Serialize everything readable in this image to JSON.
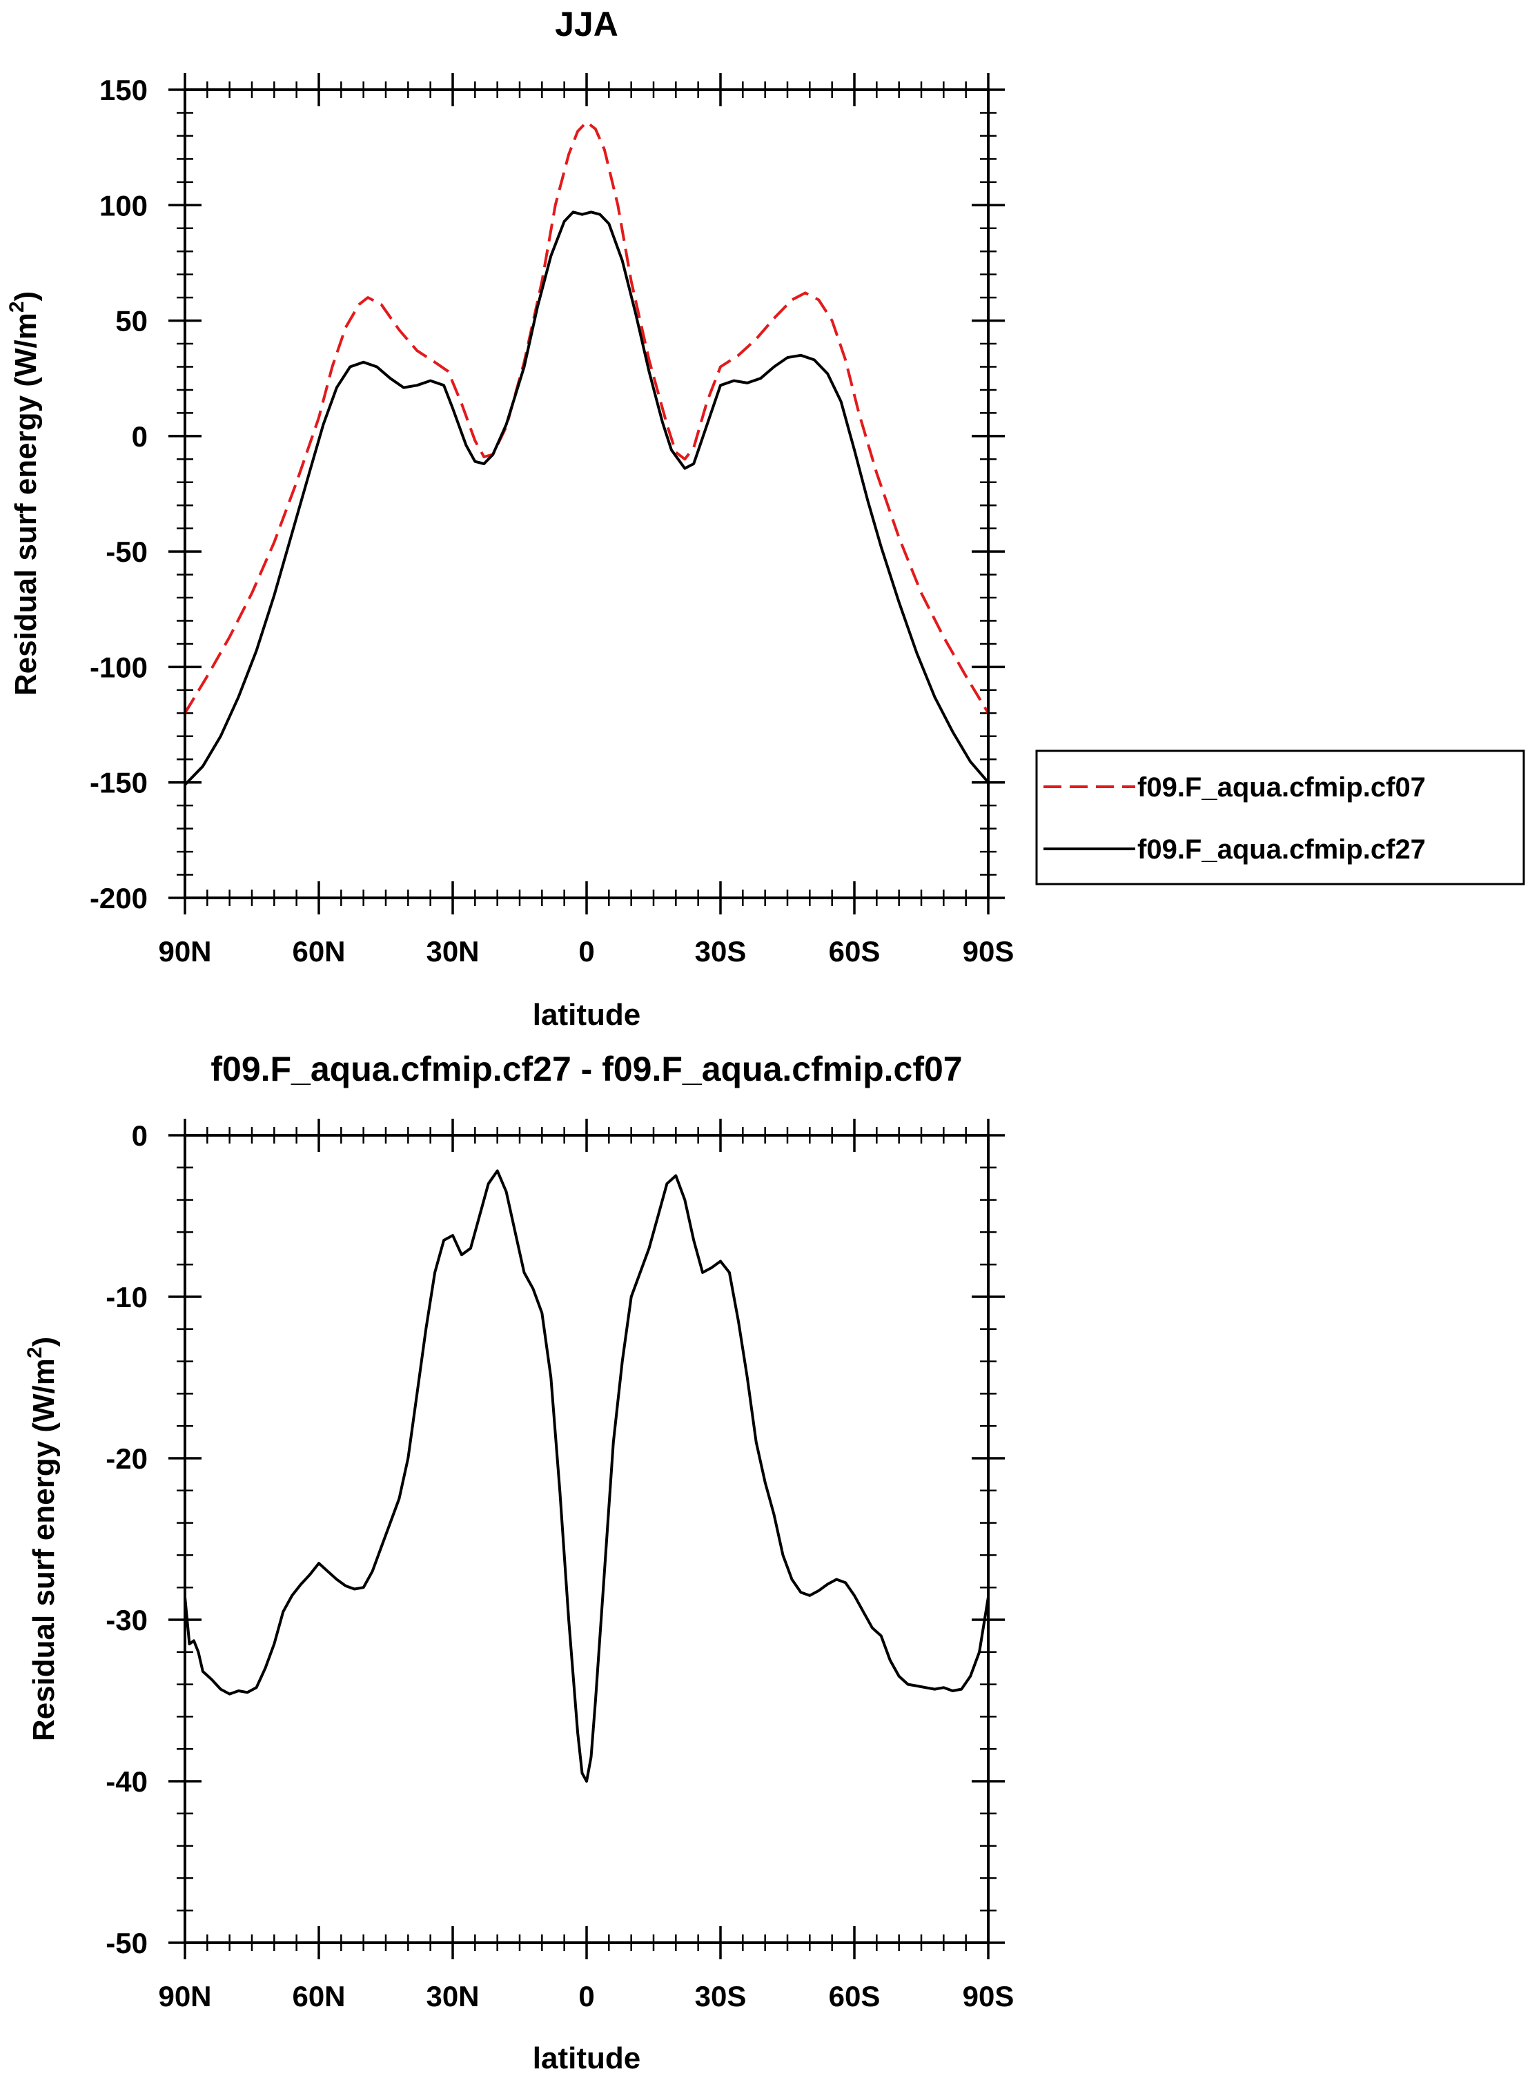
{
  "chart_data": [
    {
      "type": "line",
      "title": "JJA",
      "xlabel": "latitude",
      "ylabel_main": "Residual surf energy (W/m",
      "ylabel_sup": "2",
      "ylabel_close": ")",
      "xlim": [
        90,
        -90
      ],
      "ylim": [
        -200,
        150
      ],
      "xticks": [
        90,
        60,
        30,
        0,
        -30,
        -60,
        -90
      ],
      "xtick_labels": [
        "90N",
        "60N",
        "30N",
        "0",
        "30S",
        "60S",
        "90S"
      ],
      "yticks": [
        150,
        100,
        50,
        0,
        -50,
        -100,
        -150,
        -200
      ],
      "ytick_labels": [
        "150",
        "100",
        "50",
        "0",
        "-50",
        "-100",
        "-150",
        "-200"
      ],
      "grid": false,
      "legend_position": "right",
      "series": [
        {
          "name": "f09.F_aqua.cfmip.cf07",
          "color": "#e31a1c",
          "dash": "dashed",
          "points": [
            [
              90,
              -120
            ],
            [
              85,
              -104
            ],
            [
              80,
              -87
            ],
            [
              75,
              -68
            ],
            [
              70,
              -46
            ],
            [
              65,
              -20
            ],
            [
              60,
              8
            ],
            [
              57,
              30
            ],
            [
              54,
              47
            ],
            [
              51,
              57
            ],
            [
              49,
              60
            ],
            [
              46,
              57
            ],
            [
              42,
              46
            ],
            [
              38,
              37
            ],
            [
              34,
              32
            ],
            [
              31,
              28
            ],
            [
              28,
              14
            ],
            [
              25,
              -2
            ],
            [
              23,
              -9
            ],
            [
              21,
              -8
            ],
            [
              18,
              4
            ],
            [
              14,
              32
            ],
            [
              10,
              67
            ],
            [
              7,
              100
            ],
            [
              4,
              122
            ],
            [
              2,
              132
            ],
            [
              0,
              136
            ],
            [
              -2,
              133
            ],
            [
              -4,
              124
            ],
            [
              -7,
              100
            ],
            [
              -10,
              67
            ],
            [
              -14,
              33
            ],
            [
              -18,
              5
            ],
            [
              -20,
              -7
            ],
            [
              -22,
              -10
            ],
            [
              -24,
              -5
            ],
            [
              -27,
              15
            ],
            [
              -30,
              30
            ],
            [
              -34,
              35
            ],
            [
              -38,
              42
            ],
            [
              -42,
              51
            ],
            [
              -46,
              59
            ],
            [
              -49,
              62
            ],
            [
              -52,
              59
            ],
            [
              -55,
              50
            ],
            [
              -58,
              33
            ],
            [
              -61,
              10
            ],
            [
              -65,
              -16
            ],
            [
              -70,
              -44
            ],
            [
              -75,
              -68
            ],
            [
              -80,
              -87
            ],
            [
              -85,
              -104
            ],
            [
              -90,
              -120
            ]
          ]
        },
        {
          "name": "f09.F_aqua.cfmip.cf27",
          "color": "#000000",
          "dash": "solid",
          "points": [
            [
              90,
              -151
            ],
            [
              86,
              -143
            ],
            [
              82,
              -130
            ],
            [
              78,
              -113
            ],
            [
              74,
              -93
            ],
            [
              70,
              -69
            ],
            [
              66,
              -42
            ],
            [
              62,
              -15
            ],
            [
              59,
              5
            ],
            [
              56,
              21
            ],
            [
              53,
              30
            ],
            [
              50,
              32
            ],
            [
              47,
              30
            ],
            [
              44,
              25
            ],
            [
              41,
              21
            ],
            [
              38,
              22
            ],
            [
              35,
              24
            ],
            [
              32,
              22
            ],
            [
              30,
              12
            ],
            [
              27,
              -4
            ],
            [
              25,
              -11
            ],
            [
              23,
              -12
            ],
            [
              21,
              -8
            ],
            [
              18,
              5
            ],
            [
              14,
              30
            ],
            [
              11,
              56
            ],
            [
              8,
              78
            ],
            [
              5,
              93
            ],
            [
              3,
              97
            ],
            [
              1,
              96
            ],
            [
              -1,
              97
            ],
            [
              -3,
              96
            ],
            [
              -5,
              92
            ],
            [
              -8,
              76
            ],
            [
              -11,
              53
            ],
            [
              -14,
              28
            ],
            [
              -17,
              6
            ],
            [
              -19,
              -6
            ],
            [
              -22,
              -14
            ],
            [
              -24,
              -12
            ],
            [
              -27,
              5
            ],
            [
              -30,
              22
            ],
            [
              -33,
              24
            ],
            [
              -36,
              23
            ],
            [
              -39,
              25
            ],
            [
              -42,
              30
            ],
            [
              -45,
              34
            ],
            [
              -48,
              35
            ],
            [
              -51,
              33
            ],
            [
              -54,
              27
            ],
            [
              -57,
              15
            ],
            [
              -60,
              -6
            ],
            [
              -63,
              -28
            ],
            [
              -66,
              -48
            ],
            [
              -70,
              -72
            ],
            [
              -74,
              -94
            ],
            [
              -78,
              -113
            ],
            [
              -82,
              -128
            ],
            [
              -86,
              -141
            ],
            [
              -90,
              -150
            ]
          ]
        }
      ]
    },
    {
      "type": "line",
      "title": "f09.F_aqua.cfmip.cf27 - f09.F_aqua.cfmip.cf07",
      "xlabel": "latitude",
      "ylabel_main": "Residual surf energy (W/m",
      "ylabel_sup": "2",
      "ylabel_close": ")",
      "xlim": [
        90,
        -90
      ],
      "ylim": [
        -50,
        0
      ],
      "xticks": [
        90,
        60,
        30,
        0,
        -30,
        -60,
        -90
      ],
      "xtick_labels": [
        "90N",
        "60N",
        "30N",
        "0",
        "30S",
        "60S",
        "90S"
      ],
      "yticks": [
        0,
        -10,
        -20,
        -30,
        -40,
        -50
      ],
      "ytick_labels": [
        "0",
        "-10",
        "-20",
        "-30",
        "-40",
        "-50"
      ],
      "grid": false,
      "series": [
        {
          "name": "",
          "color": "#000000",
          "dash": "solid",
          "points": [
            [
              90,
              -28.6
            ],
            [
              89,
              -31.5
            ],
            [
              88,
              -31.3
            ],
            [
              87,
              -32
            ],
            [
              86,
              -33.2
            ],
            [
              84,
              -33.7
            ],
            [
              82,
              -34.3
            ],
            [
              80,
              -34.6
            ],
            [
              78,
              -34.4
            ],
            [
              76,
              -34.5
            ],
            [
              74,
              -34.2
            ],
            [
              72,
              -33
            ],
            [
              70,
              -31.5
            ],
            [
              68,
              -29.5
            ],
            [
              66,
              -28.5
            ],
            [
              64,
              -27.8
            ],
            [
              62,
              -27.2
            ],
            [
              60,
              -26.5
            ],
            [
              58,
              -27
            ],
            [
              56,
              -27.5
            ],
            [
              54,
              -27.9
            ],
            [
              52,
              -28.1
            ],
            [
              50,
              -28
            ],
            [
              48,
              -27
            ],
            [
              46,
              -25.5
            ],
            [
              44,
              -24
            ],
            [
              42,
              -22.5
            ],
            [
              40,
              -20
            ],
            [
              38,
              -16
            ],
            [
              36,
              -12
            ],
            [
              34,
              -8.5
            ],
            [
              32,
              -6.5
            ],
            [
              30,
              -6.2
            ],
            [
              28,
              -7.4
            ],
            [
              26,
              -7
            ],
            [
              24,
              -5
            ],
            [
              22,
              -3
            ],
            [
              20,
              -2.2
            ],
            [
              18,
              -3.5
            ],
            [
              16,
              -6
            ],
            [
              14,
              -8.5
            ],
            [
              12,
              -9.5
            ],
            [
              10,
              -11
            ],
            [
              8,
              -15
            ],
            [
              6,
              -22
            ],
            [
              4,
              -30
            ],
            [
              2,
              -37
            ],
            [
              1,
              -39.5
            ],
            [
              0,
              -40
            ],
            [
              -1,
              -38.5
            ],
            [
              -2,
              -35
            ],
            [
              -4,
              -27
            ],
            [
              -6,
              -19
            ],
            [
              -8,
              -14
            ],
            [
              -10,
              -10
            ],
            [
              -12,
              -8.5
            ],
            [
              -14,
              -7
            ],
            [
              -16,
              -5
            ],
            [
              -18,
              -3
            ],
            [
              -20,
              -2.5
            ],
            [
              -22,
              -4
            ],
            [
              -24,
              -6.5
            ],
            [
              -26,
              -8.5
            ],
            [
              -28,
              -8.2
            ],
            [
              -30,
              -7.8
            ],
            [
              -32,
              -8.5
            ],
            [
              -34,
              -11.5
            ],
            [
              -36,
              -15
            ],
            [
              -38,
              -19
            ],
            [
              -40,
              -21.5
            ],
            [
              -42,
              -23.5
            ],
            [
              -44,
              -26
            ],
            [
              -46,
              -27.5
            ],
            [
              -48,
              -28.3
            ],
            [
              -50,
              -28.5
            ],
            [
              -52,
              -28.2
            ],
            [
              -54,
              -27.8
            ],
            [
              -56,
              -27.5
            ],
            [
              -58,
              -27.7
            ],
            [
              -60,
              -28.5
            ],
            [
              -62,
              -29.5
            ],
            [
              -64,
              -30.5
            ],
            [
              -66,
              -31
            ],
            [
              -68,
              -32.5
            ],
            [
              -70,
              -33.5
            ],
            [
              -72,
              -34
            ],
            [
              -74,
              -34.1
            ],
            [
              -76,
              -34.2
            ],
            [
              -78,
              -34.3
            ],
            [
              -80,
              -34.2
            ],
            [
              -82,
              -34.4
            ],
            [
              -84,
              -34.3
            ],
            [
              -86,
              -33.5
            ],
            [
              -88,
              -32
            ],
            [
              -90,
              -28.6
            ]
          ]
        }
      ]
    }
  ]
}
